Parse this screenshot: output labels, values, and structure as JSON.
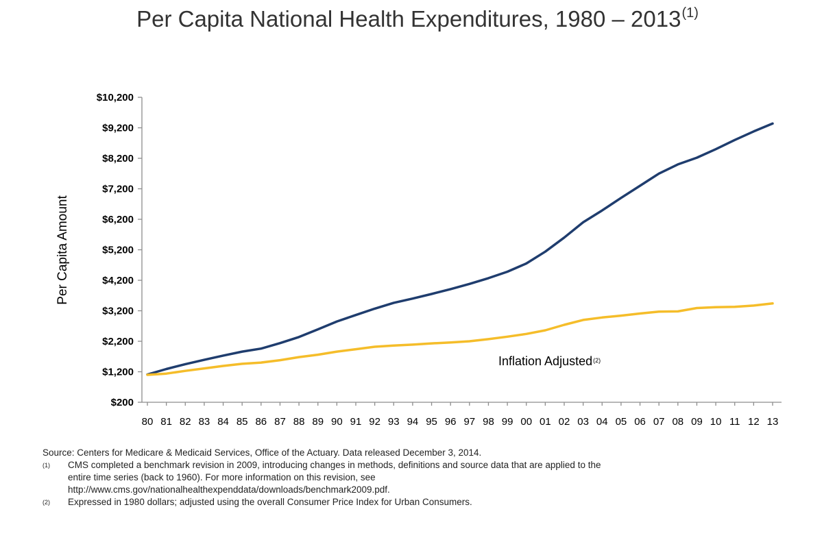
{
  "chart_data": {
    "type": "line",
    "title": "Per Capita National Health Expenditures, 1980 – 2013",
    "title_note": "(1)",
    "xlabel": "",
    "ylabel": "Per Capita Amount",
    "x": [
      "80",
      "81",
      "82",
      "83",
      "84",
      "85",
      "86",
      "87",
      "88",
      "89",
      "90",
      "91",
      "92",
      "93",
      "94",
      "95",
      "96",
      "97",
      "98",
      "99",
      "00",
      "01",
      "02",
      "03",
      "04",
      "05",
      "06",
      "07",
      "08",
      "09",
      "10",
      "11",
      "12",
      "13"
    ],
    "y_ticks": [
      "$200",
      "$1,200",
      "$2,200",
      "$3,200",
      "$4,200",
      "$5,200",
      "$6,200",
      "$7,200",
      "$8,200",
      "$9,200",
      "$10,200"
    ],
    "ylim": [
      200,
      10200
    ],
    "grid": false,
    "legend": "none",
    "series": [
      {
        "name": "",
        "color": "#1f3d6e",
        "values": [
          1110,
          1290,
          1450,
          1590,
          1730,
          1860,
          1960,
          2140,
          2340,
          2590,
          2850,
          3060,
          3270,
          3460,
          3600,
          3750,
          3910,
          4080,
          4270,
          4480,
          4750,
          5140,
          5600,
          6100,
          6490,
          6900,
          7300,
          7700,
          8000,
          8220,
          8500,
          8800,
          9080,
          9340
        ]
      },
      {
        "name": "Inflation Adjusted",
        "name_note": "(2)",
        "color": "#f5bd2a",
        "values": [
          1100,
          1140,
          1230,
          1310,
          1390,
          1460,
          1500,
          1580,
          1680,
          1760,
          1860,
          1940,
          2020,
          2060,
          2090,
          2130,
          2160,
          2200,
          2270,
          2350,
          2440,
          2560,
          2740,
          2900,
          2980,
          3040,
          3110,
          3170,
          3180,
          3290,
          3320,
          3330,
          3370,
          3440
        ]
      }
    ],
    "annotations": [
      {
        "text": "Inflation Adjusted",
        "note": "(2)"
      }
    ]
  },
  "notes": {
    "source": "Source: Centers for Medicare & Medicaid Services, Office of the Actuary. Data released December 3, 2014.",
    "footnote1_mark": "(1)",
    "footnote1_line1": "CMS completed a benchmark revision in 2009, introducing changes in methods, definitions and source data that are applied to the",
    "footnote1_line2": "entire time series (back to 1960). For more information on this revision, see",
    "footnote1_line3": "http://www.cms.gov/nationalhealthexpenddata/downloads/benchmark2009.pdf.",
    "footnote2_mark": "(2)",
    "footnote2_line1": "Expressed in 1980 dollars; adjusted using the overall Consumer Price Index for Urban Consumers."
  }
}
